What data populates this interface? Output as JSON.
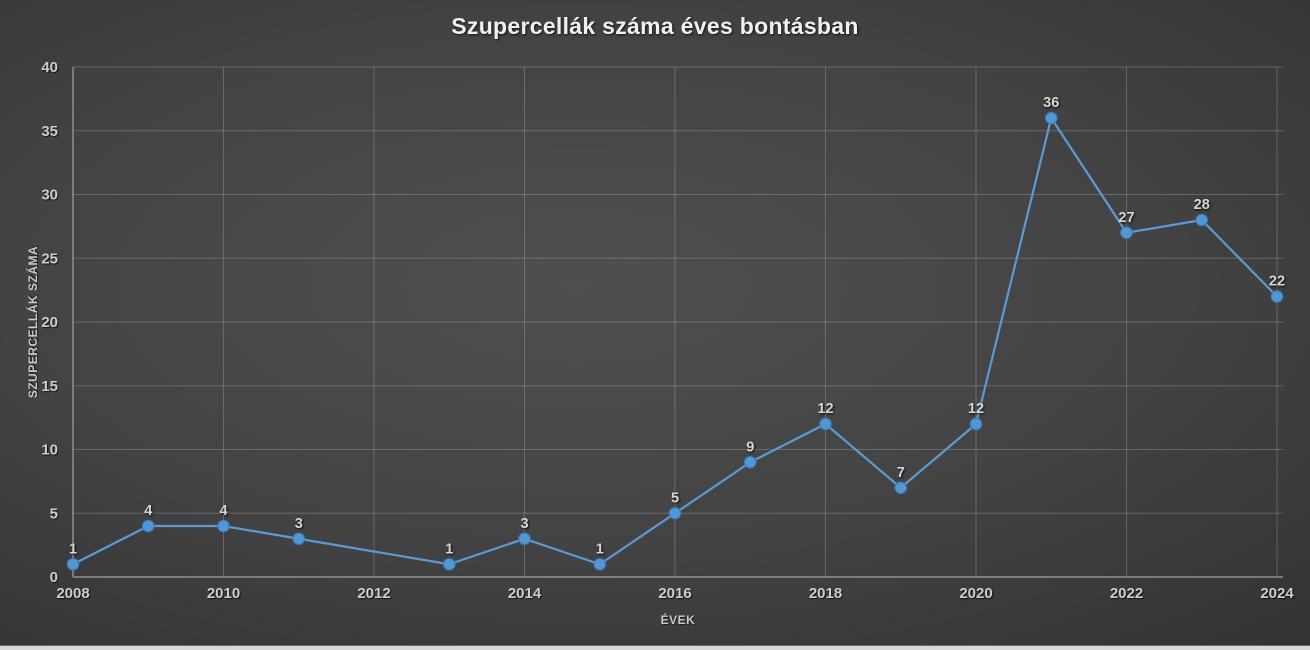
{
  "chart_data": {
    "type": "line",
    "title": "Szupercellák száma éves bontásban",
    "xlabel": "ÉVEK",
    "ylabel": "SZUPERCELLÁK SZÁMA",
    "x": [
      2008,
      2009,
      2010,
      2011,
      2013,
      2014,
      2015,
      2016,
      2017,
      2018,
      2019,
      2020,
      2021,
      2022,
      2023,
      2024
    ],
    "values": [
      1,
      4,
      4,
      3,
      1,
      3,
      1,
      5,
      9,
      12,
      7,
      12,
      36,
      27,
      28,
      22
    ],
    "xticks": [
      2008,
      2010,
      2012,
      2014,
      2016,
      2018,
      2020,
      2022,
      2024
    ],
    "yticks": [
      0,
      5,
      10,
      15,
      20,
      25,
      30,
      35,
      40
    ],
    "xlim": [
      2008,
      2024
    ],
    "ylim": [
      0,
      40
    ],
    "grid": true,
    "legend": false,
    "data_labels": true,
    "missing_x": [
      2012
    ],
    "line_color": "#5B9BD5",
    "marker_color": "#4f97d6",
    "marker_edge_color": "#3c7ab3",
    "data_label_color": "#d6d6d6",
    "tick_label_color": "#cdcdcd",
    "gridline_color": "rgba(255,255,255,0.20)",
    "axis_line_color": "#a2a2a2"
  }
}
